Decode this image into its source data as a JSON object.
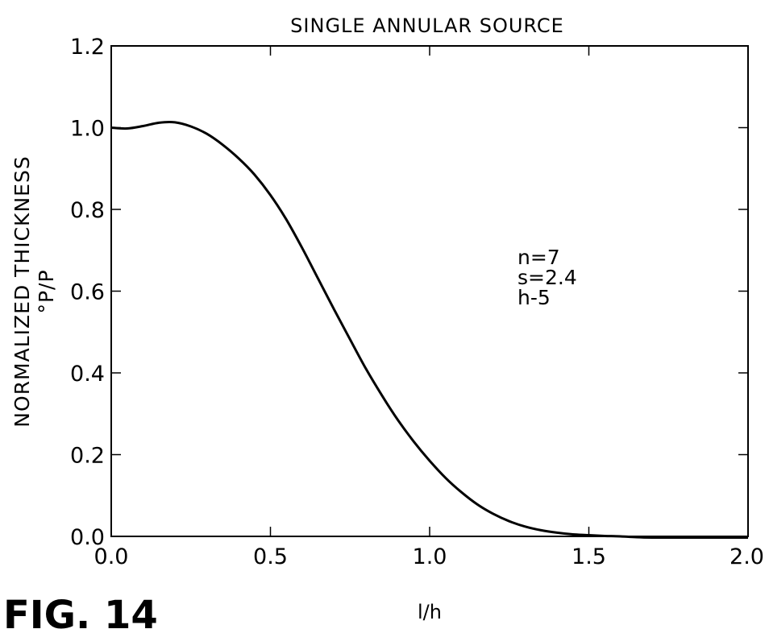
{
  "figure_label": "FIG. 14",
  "chart_data": {
    "type": "line",
    "title": "SINGLE ANNULAR SOURCE",
    "xlabel": "l/h",
    "ylabel_lines": [
      "NORMALIZED THICKNESS",
      "°P/P"
    ],
    "xlim": [
      0.0,
      2.0
    ],
    "ylim": [
      0.0,
      1.2
    ],
    "xticks": [
      0.0,
      0.5,
      1.0,
      1.5,
      2.0
    ],
    "xtick_labels": [
      "0.0",
      "0.5",
      "1.0",
      "1.5",
      "2.0"
    ],
    "yticks": [
      0.0,
      0.2,
      0.4,
      0.6,
      0.8,
      1.0,
      1.2
    ],
    "ytick_labels": [
      "0.0",
      "0.2",
      "0.4",
      "0.6",
      "0.8",
      "1.0",
      "1.2"
    ],
    "grid": false,
    "annotations": [
      "n=7",
      "s=2.4",
      "h-5"
    ],
    "series": [
      {
        "x": [
          0.0,
          0.05,
          0.1,
          0.15,
          0.2,
          0.25,
          0.3,
          0.35,
          0.4,
          0.45,
          0.5,
          0.55,
          0.6,
          0.65,
          0.7,
          0.75,
          0.8,
          0.85,
          0.9,
          0.95,
          1.0,
          1.05,
          1.1,
          1.15,
          1.2,
          1.25,
          1.3,
          1.35,
          1.4,
          1.45,
          1.5,
          1.55,
          1.6,
          1.65,
          1.7,
          1.8,
          1.9,
          2.0
        ],
        "y": [
          1.0,
          0.998,
          1.004,
          1.012,
          1.013,
          1.003,
          0.985,
          0.958,
          0.925,
          0.885,
          0.835,
          0.775,
          0.705,
          0.63,
          0.555,
          0.482,
          0.41,
          0.345,
          0.285,
          0.232,
          0.185,
          0.143,
          0.108,
          0.078,
          0.055,
          0.037,
          0.024,
          0.015,
          0.009,
          0.005,
          0.003,
          0.001,
          0.0,
          -0.002,
          -0.003,
          -0.003,
          -0.003,
          -0.003
        ]
      }
    ]
  }
}
